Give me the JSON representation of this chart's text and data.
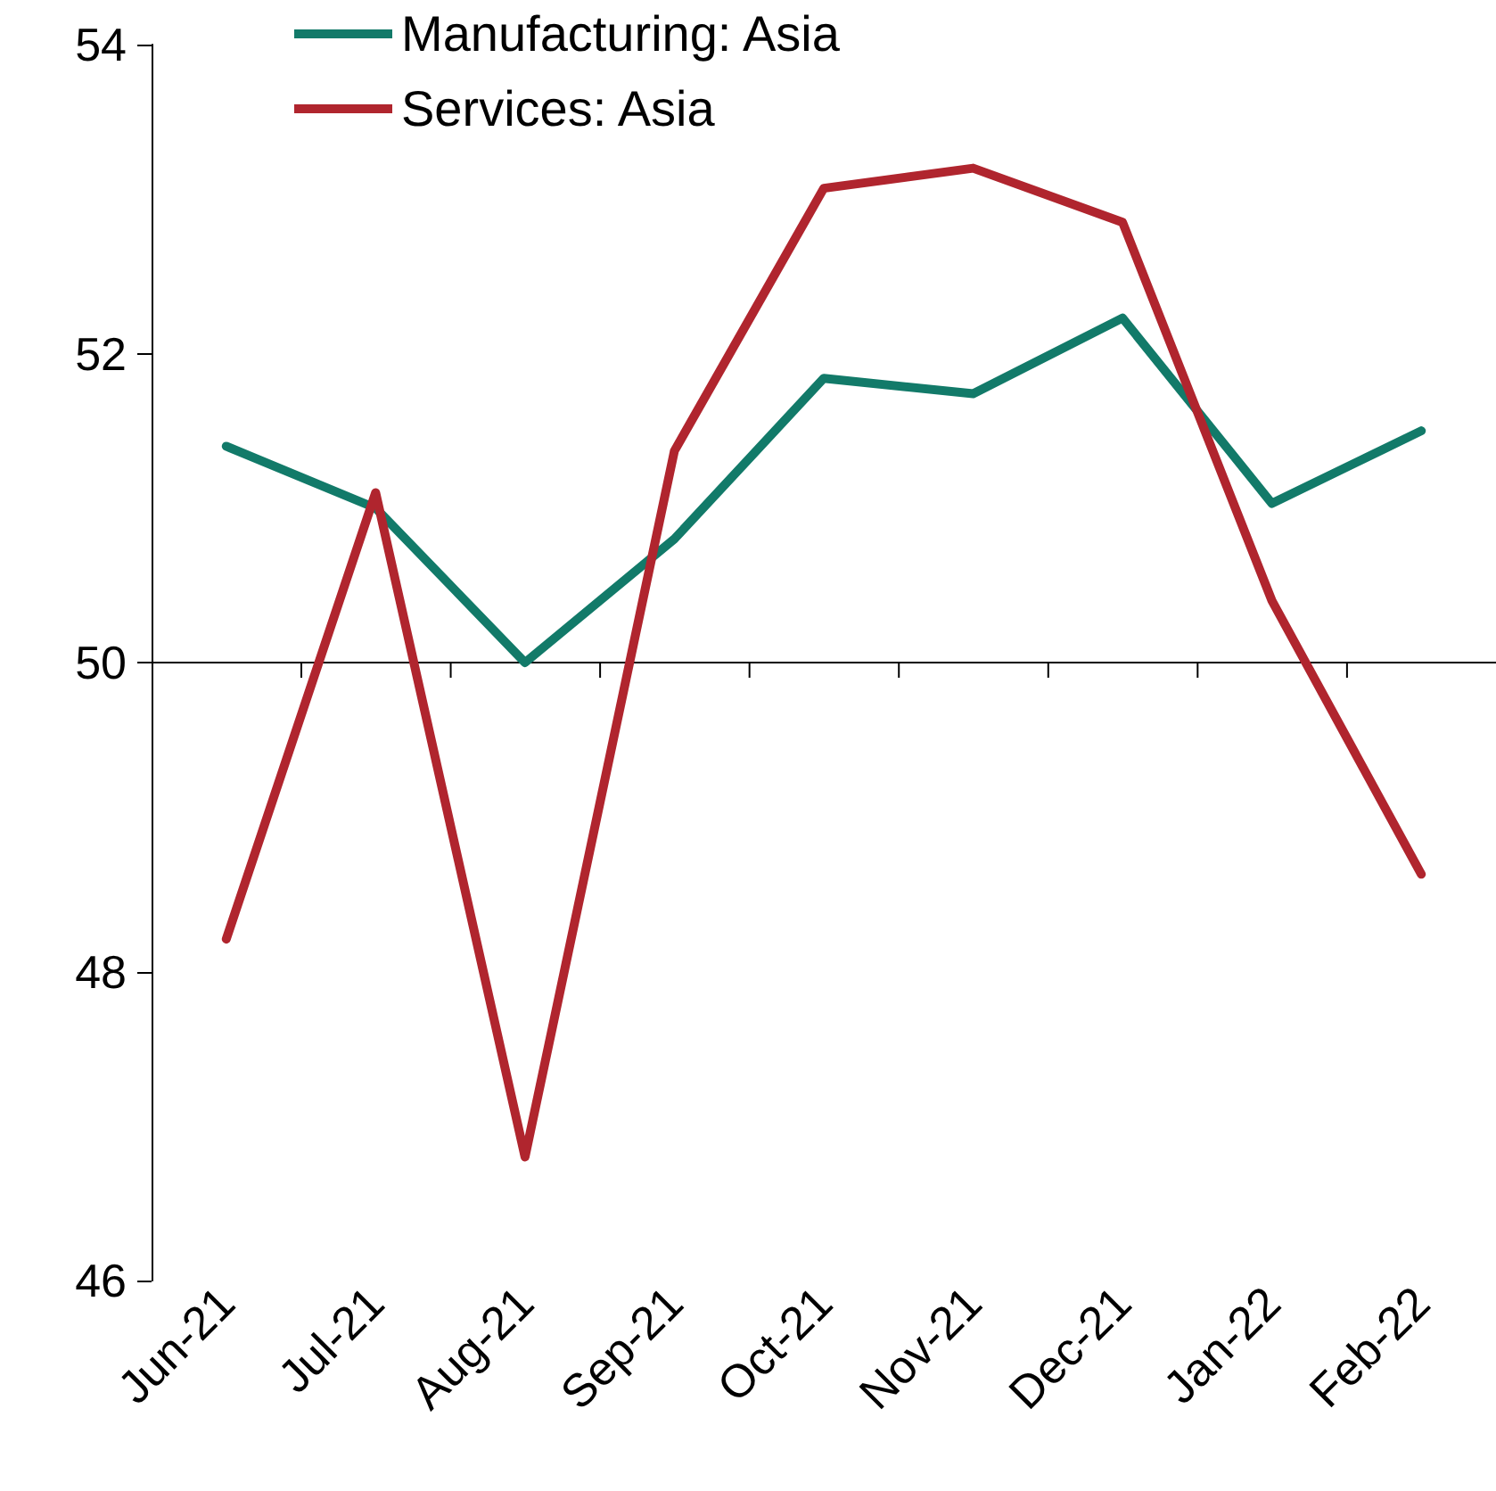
{
  "chart_data": {
    "type": "line",
    "categories": [
      "Jun-21",
      "Jul-21",
      "Aug-21",
      "Sep-21",
      "Oct-21",
      "Nov-21",
      "Dec-21",
      "Jan-22",
      "Feb-22"
    ],
    "series": [
      {
        "name": "Manufacturing: Asia",
        "color": "#127a69",
        "values": [
          51.4,
          51.0,
          50.0,
          50.8,
          51.84,
          51.74,
          52.23,
          51.03,
          51.5
        ]
      },
      {
        "name": "Services: Asia",
        "color": "#b0252e",
        "values": [
          48.21,
          51.1,
          46.8,
          51.37,
          53.07,
          53.2,
          52.85,
          50.4,
          48.63
        ]
      }
    ],
    "ylim": [
      46,
      54
    ],
    "yticks": [
      46,
      48,
      50,
      52,
      54
    ],
    "grid": false,
    "legend": "top left",
    "marker": "none",
    "line_style": "solid",
    "ref_lines": [
      {
        "axis": "y",
        "value": 50
      }
    ]
  }
}
